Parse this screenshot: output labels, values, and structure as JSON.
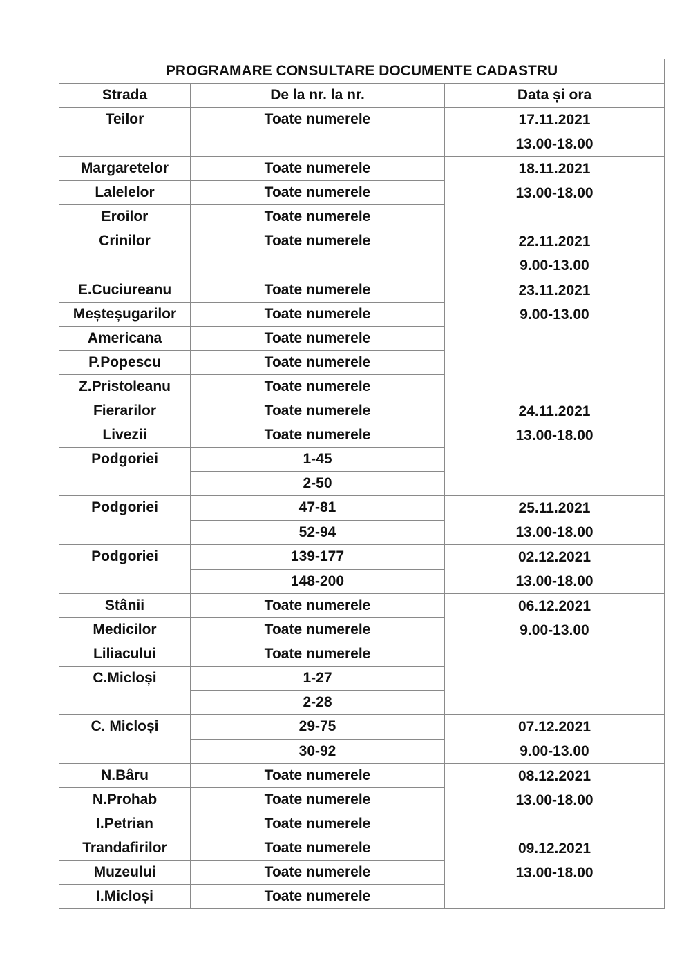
{
  "title": "PROGRAMARE CONSULTARE DOCUMENTE CADASTRU",
  "headers": [
    "Strada",
    "De la nr. la nr.",
    "Data și ora"
  ],
  "groups": [
    {
      "date": "17.11.2021",
      "time": "13.00-18.00",
      "streets": [
        {
          "name": "Teilor",
          "ranges": [
            "Toate numerele"
          ]
        }
      ]
    },
    {
      "date": "18.11.2021",
      "time": "13.00-18.00",
      "streets": [
        {
          "name": "Margaretelor",
          "ranges": [
            "Toate numerele"
          ]
        },
        {
          "name": "Lalelelor",
          "ranges": [
            "Toate numerele"
          ]
        },
        {
          "name": "Eroilor",
          "ranges": [
            "Toate numerele"
          ]
        }
      ]
    },
    {
      "date": "22.11.2021",
      "time": "9.00-13.00",
      "streets": [
        {
          "name": "Crinilor",
          "ranges": [
            "Toate numerele"
          ]
        }
      ]
    },
    {
      "date": "23.11.2021",
      "time": "9.00-13.00",
      "streets": [
        {
          "name": "E.Cuciureanu",
          "ranges": [
            "Toate numerele"
          ]
        },
        {
          "name": "Meșteșugarilor",
          "ranges": [
            "Toate numerele"
          ]
        },
        {
          "name": "Americana",
          "ranges": [
            "Toate numerele"
          ]
        },
        {
          "name": "P.Popescu",
          "ranges": [
            "Toate numerele"
          ]
        },
        {
          "name": "Z.Pristoleanu",
          "ranges": [
            "Toate numerele"
          ]
        }
      ]
    },
    {
      "date": "24.11.2021",
      "time": "13.00-18.00",
      "streets": [
        {
          "name": "Fierarilor",
          "ranges": [
            "Toate numerele"
          ]
        },
        {
          "name": "Livezii",
          "ranges": [
            "Toate numerele"
          ]
        },
        {
          "name": "Podgoriei",
          "ranges": [
            "1-45",
            "2-50"
          ]
        }
      ]
    },
    {
      "date": "25.11.2021",
      "time": "13.00-18.00",
      "streets": [
        {
          "name": "Podgoriei",
          "ranges": [
            "47-81",
            "52-94"
          ]
        }
      ]
    },
    {
      "date": "02.12.2021",
      "time": "13.00-18.00",
      "streets": [
        {
          "name": "Podgoriei",
          "ranges": [
            "139-177",
            "148-200"
          ]
        }
      ]
    },
    {
      "date": "06.12.2021",
      "time": "9.00-13.00",
      "streets": [
        {
          "name": "Stânii",
          "ranges": [
            "Toate numerele"
          ]
        },
        {
          "name": "Medicilor",
          "ranges": [
            "Toate numerele"
          ]
        },
        {
          "name": "Liliacului",
          "ranges": [
            "Toate numerele"
          ]
        },
        {
          "name": "C.Micloși",
          "ranges": [
            "1-27",
            "2-28"
          ]
        }
      ]
    },
    {
      "date": "07.12.2021",
      "time": "9.00-13.00",
      "streets": [
        {
          "name": "C. Micloși",
          "ranges": [
            "29-75",
            "30-92"
          ]
        }
      ]
    },
    {
      "date": "08.12.2021",
      "time": "13.00-18.00",
      "streets": [
        {
          "name": "N.Bâru",
          "ranges": [
            "Toate numerele"
          ]
        },
        {
          "name": "N.Prohab",
          "ranges": [
            "Toate numerele"
          ]
        },
        {
          "name": "I.Petrian",
          "ranges": [
            "Toate numerele"
          ]
        }
      ]
    },
    {
      "date": "09.12.2021",
      "time": "13.00-18.00",
      "streets": [
        {
          "name": "Trandafirilor",
          "ranges": [
            "Toate numerele"
          ]
        },
        {
          "name": "Muzeului",
          "ranges": [
            "Toate numerele"
          ]
        },
        {
          "name": "I.Micloși",
          "ranges": [
            "Toate numerele"
          ]
        }
      ]
    }
  ]
}
